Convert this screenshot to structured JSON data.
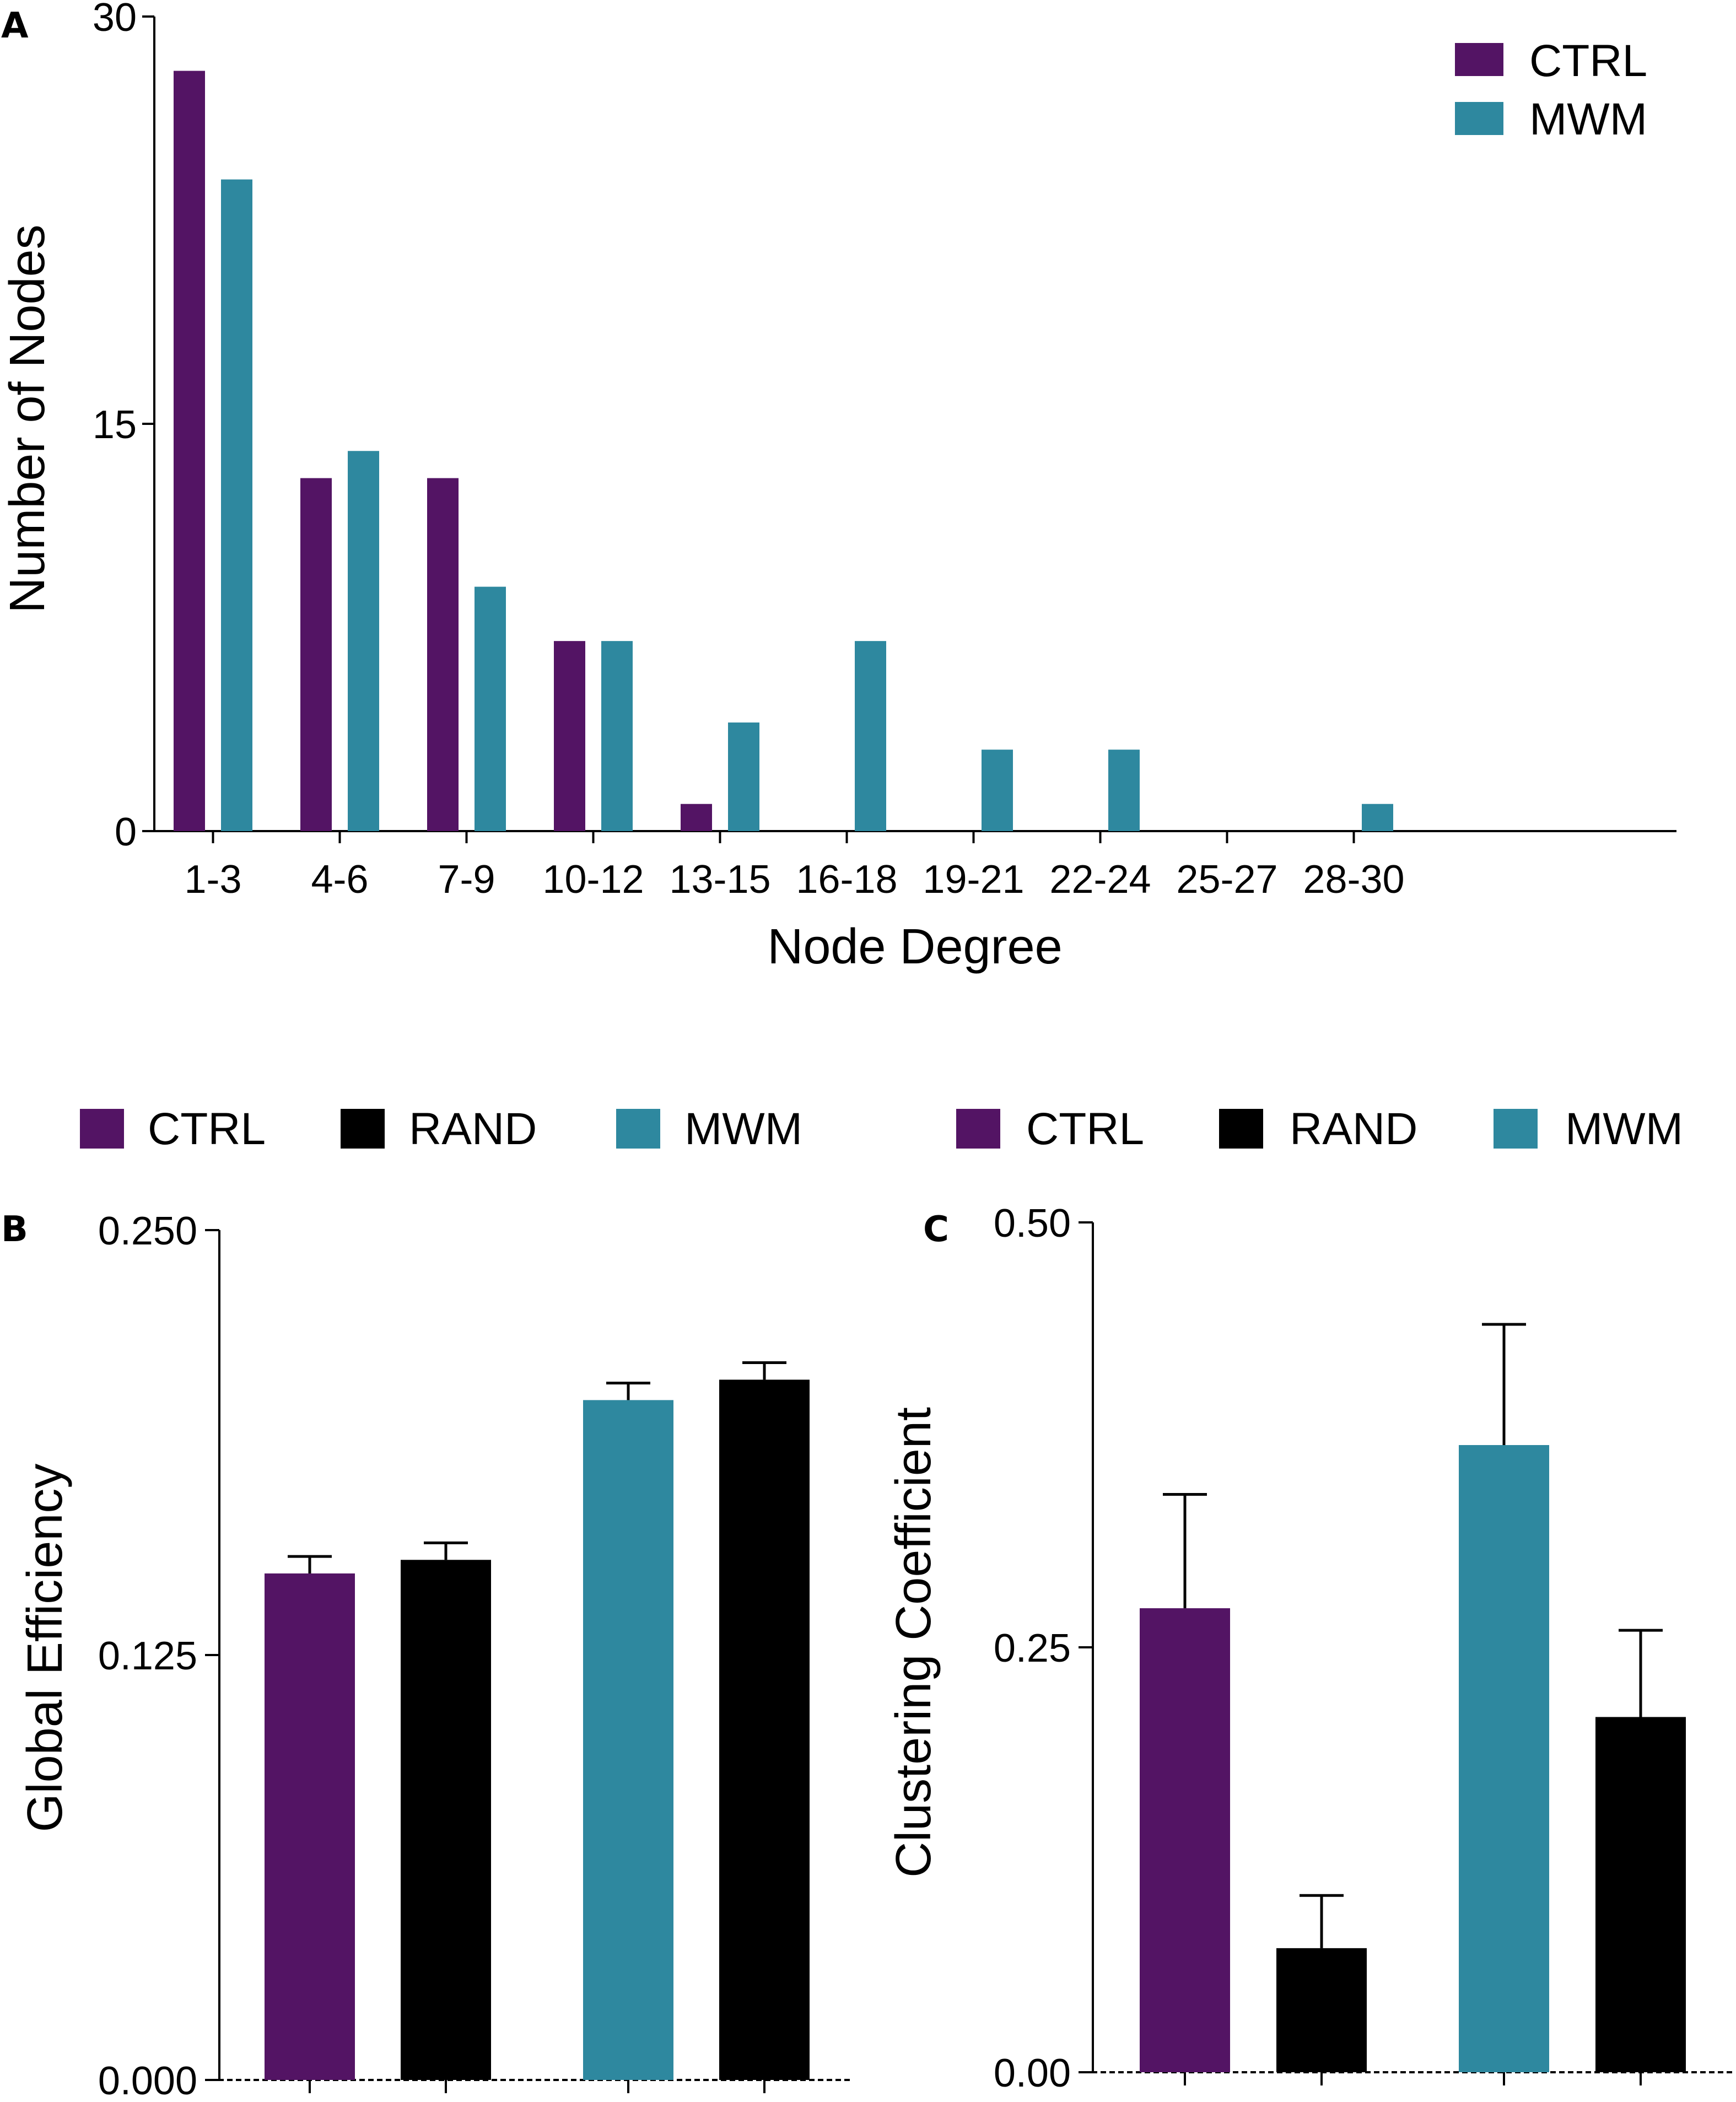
{
  "colors": {
    "ctrl": "#531464",
    "rand": "#000000",
    "mwm": "#2e889f"
  },
  "chart_data": [
    {
      "panel": "A",
      "type": "bar",
      "xlabel": "Node Degree",
      "ylabel": "Number of Nodes",
      "ylim": [
        0,
        30
      ],
      "yticks": [
        "0",
        "15",
        "30"
      ],
      "categories": [
        "1-3",
        "4-6",
        "7-9",
        "10-12",
        "13-15",
        "16-18",
        "19-21",
        "22-24",
        "25-27",
        "28-30"
      ],
      "series": [
        {
          "name": "CTRL",
          "color": "#531464",
          "values": [
            28,
            13,
            13,
            7,
            1,
            0,
            0,
            0,
            0,
            0
          ]
        },
        {
          "name": "MWM",
          "color": "#2e889f",
          "values": [
            24,
            14,
            9,
            7,
            4,
            7,
            3,
            3,
            0,
            1
          ]
        }
      ],
      "legend": [
        "CTRL",
        "MWM"
      ],
      "legend_position": "top-right"
    },
    {
      "panel": "B",
      "type": "bar",
      "xlabel": "",
      "ylabel": "Global Efficiency",
      "ylim": [
        0,
        0.25
      ],
      "yticks": [
        "0.000",
        "0.125",
        "0.250"
      ],
      "legend": [
        "CTRL",
        "RAND",
        "MWM"
      ],
      "legend_position": "top",
      "bars": [
        {
          "name": "CTRL",
          "color": "#531464",
          "value": 0.149,
          "error": 0.005
        },
        {
          "name": "RAND",
          "color": "#000000",
          "value": 0.153,
          "error": 0.005
        },
        {
          "name": "MWM",
          "color": "#2e889f",
          "value": 0.2,
          "error": 0.005
        },
        {
          "name": "RAND",
          "color": "#000000",
          "value": 0.206,
          "error": 0.005
        }
      ]
    },
    {
      "panel": "C",
      "type": "bar",
      "xlabel": "",
      "ylabel": "Clustering Coefficient",
      "ylim": [
        0,
        0.5
      ],
      "yticks": [
        "0.00",
        "0.25",
        "0.50"
      ],
      "legend": [
        "CTRL",
        "RAND",
        "MWM"
      ],
      "legend_position": "top",
      "bars": [
        {
          "name": "CTRL",
          "color": "#531464",
          "value": 0.273,
          "error": 0.067
        },
        {
          "name": "RAND",
          "color": "#000000",
          "value": 0.073,
          "error": 0.031
        },
        {
          "name": "MWM",
          "color": "#2e889f",
          "value": 0.369,
          "error": 0.071
        },
        {
          "name": "RAND",
          "color": "#000000",
          "value": 0.209,
          "error": 0.051
        }
      ]
    }
  ]
}
